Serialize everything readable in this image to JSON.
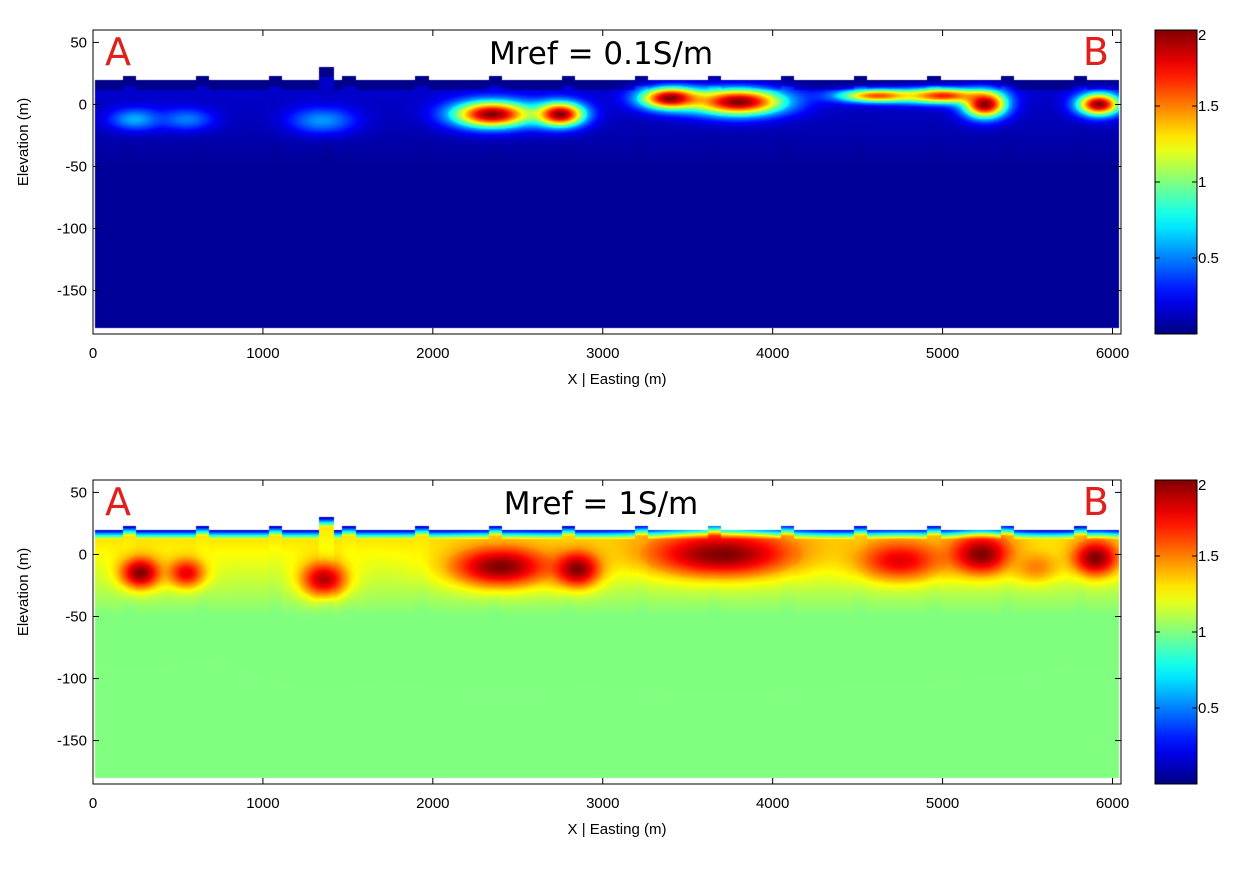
{
  "chart_data": [
    {
      "type": "heatmap",
      "title": "Mref = 0.1S/m",
      "xlabel": "X | Easting (m)",
      "ylabel": "Elevation (m)",
      "xlim": [
        0,
        6050
      ],
      "ylim": [
        -185,
        60
      ],
      "xticks": [
        0,
        1000,
        2000,
        3000,
        4000,
        5000,
        6000
      ],
      "yticks": [
        50,
        0,
        -50,
        -100,
        -150
      ],
      "corner_labels": [
        "A",
        "B"
      ],
      "colorbar": {
        "range": [
          0,
          2
        ],
        "ticks": [
          2,
          1.5,
          1,
          0.5
        ],
        "colormap": "jet"
      },
      "background_value": 0.05,
      "surface_elevation": 20,
      "bottom_elevation": -180,
      "near_surface_value": 0.15,
      "deep_value": 0.05,
      "anomalies": [
        {
          "x": 250,
          "elev": -12,
          "rx": 170,
          "ry": 10,
          "value": 0.6
        },
        {
          "x": 550,
          "elev": -12,
          "rx": 180,
          "ry": 10,
          "value": 0.5
        },
        {
          "x": 1350,
          "elev": -13,
          "rx": 220,
          "ry": 12,
          "value": 0.55
        },
        {
          "x": 2350,
          "elev": -8,
          "rx": 260,
          "ry": 12,
          "value": 2.0
        },
        {
          "x": 2750,
          "elev": -8,
          "rx": 160,
          "ry": 11,
          "value": 2.0
        },
        {
          "x": 3400,
          "elev": 5,
          "rx": 200,
          "ry": 10,
          "value": 2.0
        },
        {
          "x": 3800,
          "elev": 2,
          "rx": 300,
          "ry": 12,
          "value": 2.0
        },
        {
          "x": 4620,
          "elev": 7,
          "rx": 260,
          "ry": 6,
          "value": 1.6
        },
        {
          "x": 5000,
          "elev": 7,
          "rx": 250,
          "ry": 7,
          "value": 1.7
        },
        {
          "x": 5250,
          "elev": 0,
          "rx": 140,
          "ry": 12,
          "value": 2.0
        },
        {
          "x": 5920,
          "elev": 0,
          "rx": 140,
          "ry": 10,
          "value": 2.0
        }
      ]
    },
    {
      "type": "heatmap",
      "title": "Mref = 1S/m",
      "xlabel": "X | Easting (m)",
      "ylabel": "Elevation (m)",
      "xlim": [
        0,
        6050
      ],
      "ylim": [
        -185,
        60
      ],
      "xticks": [
        0,
        1000,
        2000,
        3000,
        4000,
        5000,
        6000
      ],
      "yticks": [
        50,
        0,
        -50,
        -100,
        -150
      ],
      "corner_labels": [
        "A",
        "B"
      ],
      "colorbar": {
        "range": [
          0,
          2
        ],
        "ticks": [
          2,
          1.5,
          1,
          0.5
        ],
        "colormap": "jet"
      },
      "background_value": 1.0,
      "surface_elevation": 20,
      "bottom_elevation": -180,
      "near_surface_value": 1.3,
      "deep_value": 1.0,
      "anomalies": [
        {
          "x": 280,
          "elev": -15,
          "rx": 130,
          "ry": 14,
          "value": 2.0
        },
        {
          "x": 550,
          "elev": -15,
          "rx": 120,
          "ry": 13,
          "value": 1.8
        },
        {
          "x": 1360,
          "elev": -20,
          "rx": 150,
          "ry": 16,
          "value": 1.9
        },
        {
          "x": 2400,
          "elev": -10,
          "rx": 320,
          "ry": 18,
          "value": 2.0
        },
        {
          "x": 2850,
          "elev": -12,
          "rx": 150,
          "ry": 16,
          "value": 2.0
        },
        {
          "x": 3700,
          "elev": 0,
          "rx": 480,
          "ry": 20,
          "value": 2.0
        },
        {
          "x": 4750,
          "elev": -5,
          "rx": 280,
          "ry": 18,
          "value": 1.8
        },
        {
          "x": 5230,
          "elev": 0,
          "rx": 200,
          "ry": 18,
          "value": 2.0
        },
        {
          "x": 5550,
          "elev": -10,
          "rx": 150,
          "ry": 14,
          "value": 1.5
        },
        {
          "x": 5900,
          "elev": -3,
          "rx": 150,
          "ry": 16,
          "value": 2.0
        }
      ]
    }
  ]
}
